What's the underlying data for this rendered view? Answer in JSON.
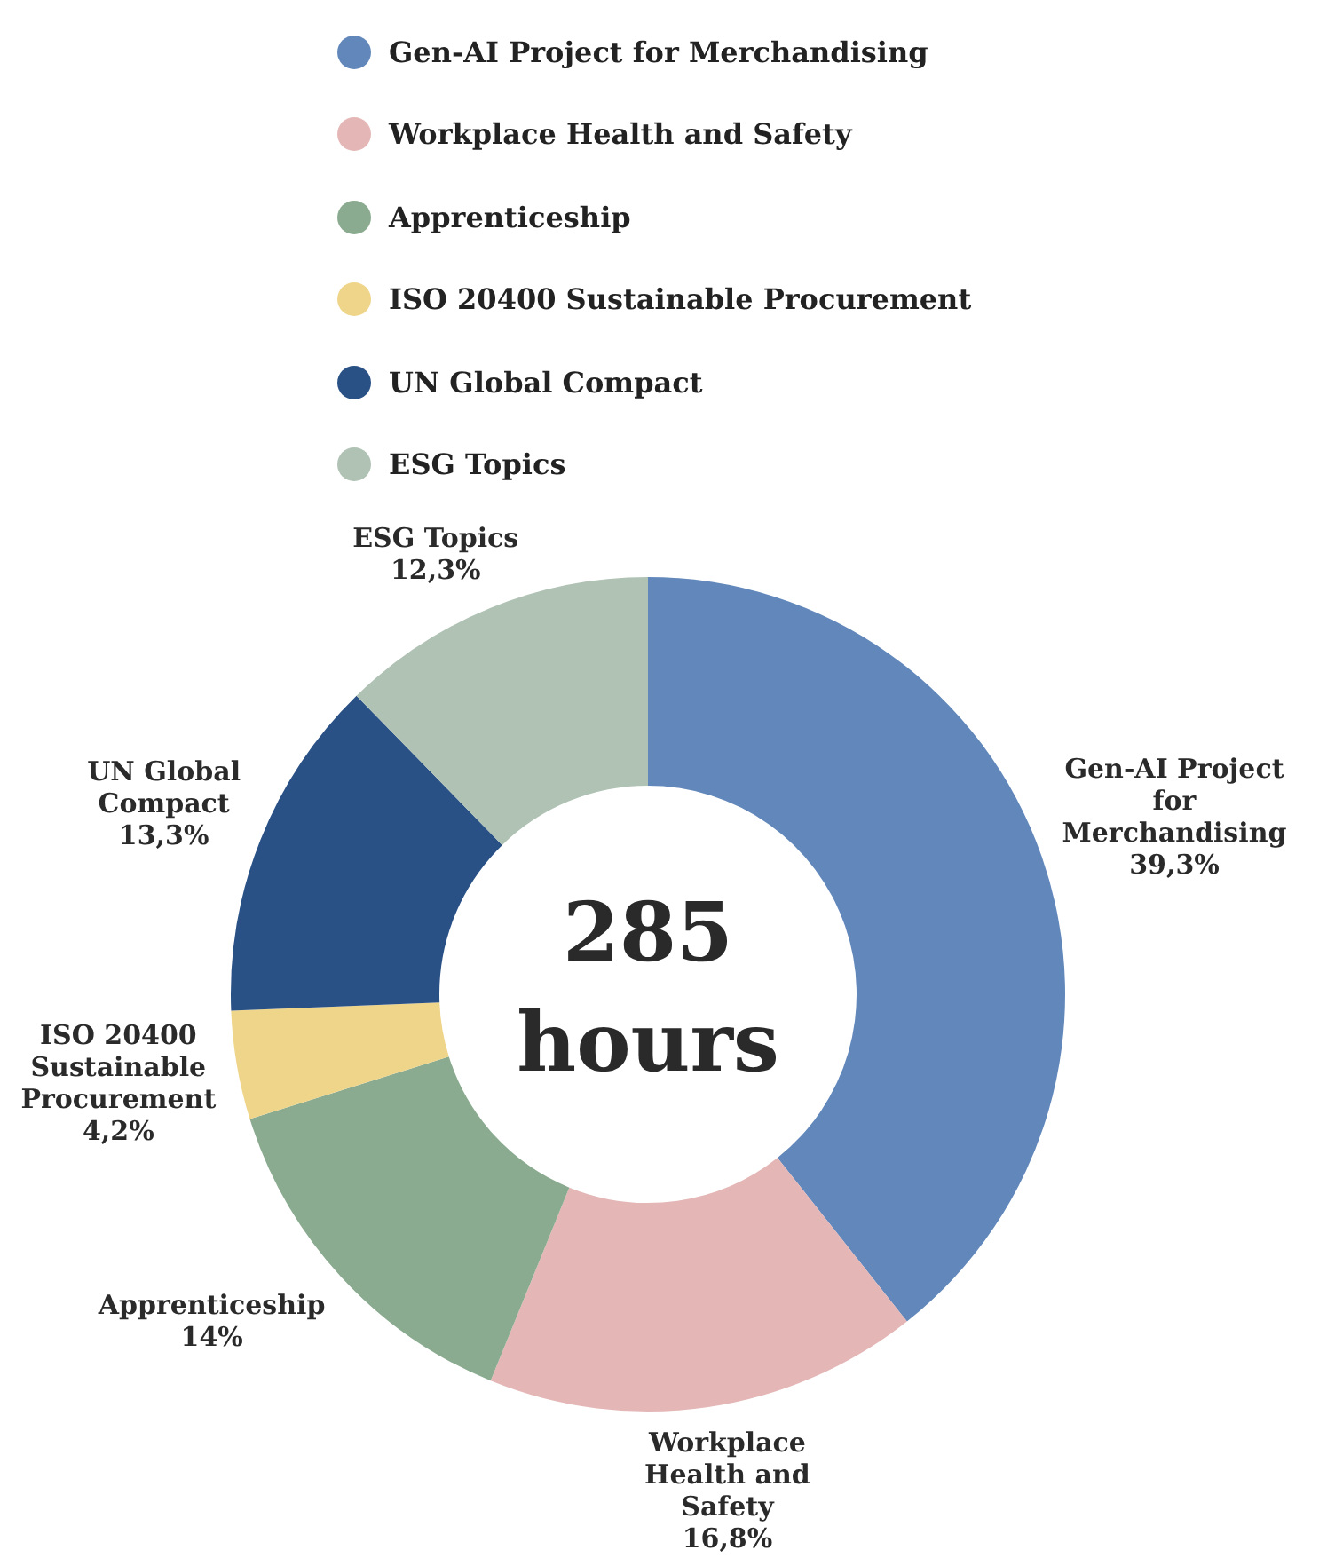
{
  "chart_data": {
    "type": "donut",
    "categories": [
      "Gen-AI Project for Merchandising",
      "Workplace Health and Safety",
      "Apprenticeship",
      "ISO 20400 Sustainable Procurement",
      "UN Global Compact",
      "ESG Topics"
    ],
    "values": [
      39.3,
      16.8,
      14,
      4.2,
      13.3,
      12.3
    ],
    "value_labels": [
      "39,3%",
      "16,8%",
      "14%",
      "4,2%",
      "13,3%",
      "12,3%"
    ],
    "colors": [
      "#6288bb",
      "#e4b6b6",
      "#8aab8f",
      "#efd58a",
      "#2a5186",
      "#afc2b4"
    ],
    "legend": "top",
    "annotations": [
      "285 hours"
    ]
  }
}
